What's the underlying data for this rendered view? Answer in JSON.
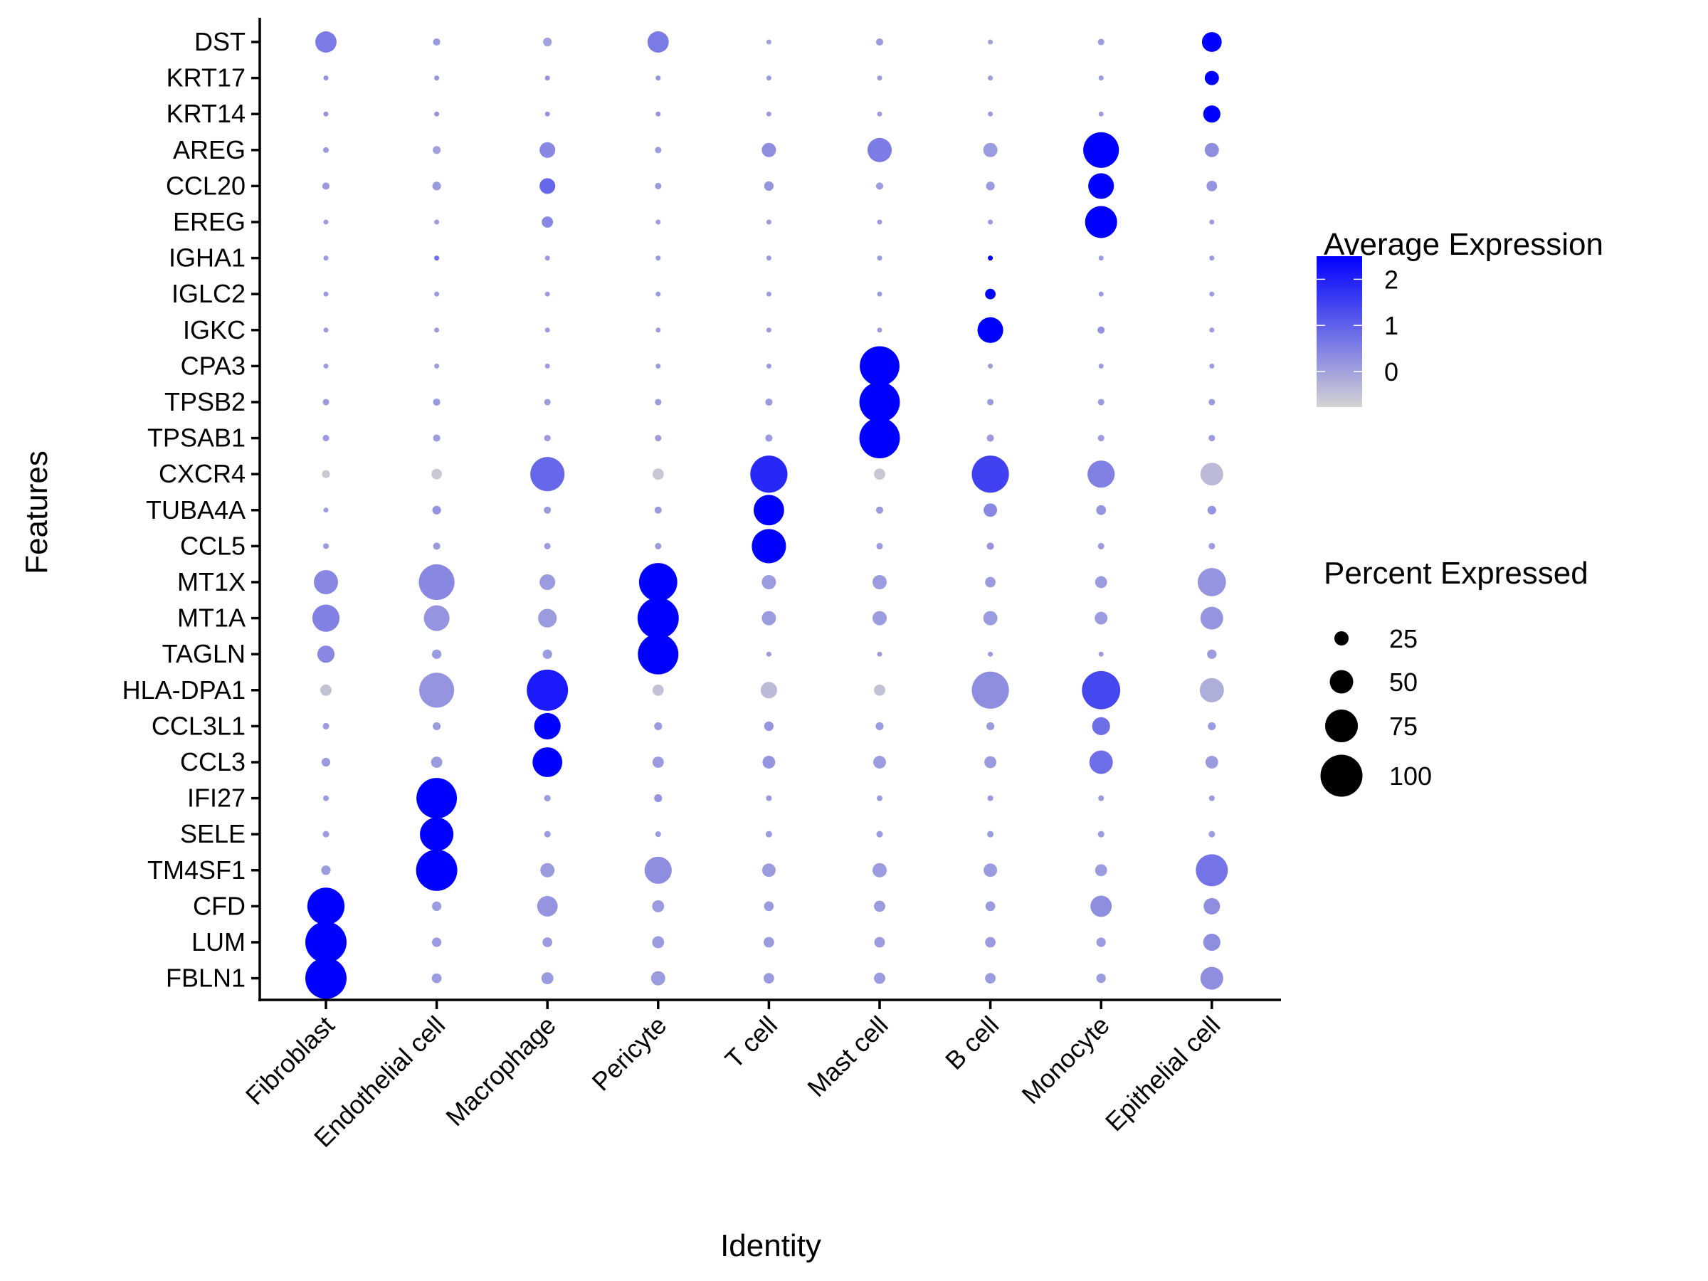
{
  "chart_data": {
    "type": "scatter",
    "subtype": "dotplot",
    "title": "",
    "xlabel": "Identity",
    "ylabel": "Features",
    "x_categories": [
      "Fibroblast",
      "Endothelial cell",
      "Macrophage",
      "Pericyte",
      "T cell",
      "Mast cell",
      "B cell",
      "Monocyte",
      "Epithelial cell"
    ],
    "y_categories": [
      "DST",
      "KRT17",
      "KRT14",
      "AREG",
      "CCL20",
      "EREG",
      "IGHA1",
      "IGLC2",
      "IGKC",
      "CPA3",
      "TPSB2",
      "TPSAB1",
      "CXCR4",
      "TUBA4A",
      "CCL5",
      "MT1X",
      "MT1A",
      "TAGLN",
      "HLA-DPA1",
      "CCL3L1",
      "CCL3",
      "IFI27",
      "SELE",
      "TM4SF1",
      "CFD",
      "LUM",
      "FBLN1"
    ],
    "percent_expressed": [
      [
        44,
        6,
        10,
        44,
        0,
        6,
        0,
        4,
        40
      ],
      [
        0,
        0,
        0,
        0,
        0,
        0,
        0,
        0,
        25
      ],
      [
        0,
        0,
        0,
        0,
        0,
        0,
        0,
        0,
        33
      ],
      [
        2,
        8,
        29,
        4,
        25,
        52,
        25,
        83,
        25
      ],
      [
        6,
        10,
        29,
        4,
        12,
        6,
        10,
        56,
        15
      ],
      [
        0,
        0,
        17,
        0,
        0,
        0,
        0,
        73,
        0
      ],
      [
        0,
        0,
        0,
        0,
        0,
        0,
        0,
        0,
        0
      ],
      [
        0,
        0,
        0,
        0,
        0,
        0,
        15,
        0,
        0
      ],
      [
        0,
        0,
        0,
        0,
        0,
        0,
        56,
        6,
        0
      ],
      [
        0,
        0,
        0,
        0,
        0,
        94,
        0,
        0,
        0
      ],
      [
        4,
        6,
        4,
        4,
        6,
        96,
        4,
        4,
        4
      ],
      [
        4,
        6,
        4,
        4,
        6,
        96,
        6,
        4,
        4
      ],
      [
        8,
        15,
        79,
        17,
        87,
        17,
        87,
        60,
        48
      ],
      [
        0,
        10,
        6,
        6,
        69,
        6,
        23,
        13,
        10
      ],
      [
        2,
        6,
        4,
        4,
        79,
        4,
        6,
        4,
        4
      ],
      [
        52,
        83,
        29,
        90,
        25,
        25,
        15,
        19,
        63
      ],
      [
        60,
        56,
        37,
        98,
        25,
        25,
        25,
        21,
        48
      ],
      [
        33,
        12,
        12,
        96,
        0,
        0,
        0,
        0,
        12
      ],
      [
        17,
        81,
        98,
        17,
        31,
        17,
        87,
        90,
        52
      ],
      [
        4,
        8,
        58,
        8,
        12,
        8,
        8,
        35,
        8
      ],
      [
        10,
        17,
        67,
        17,
        21,
        21,
        19,
        50,
        21
      ],
      [
        2,
        96,
        4,
        8,
        2,
        2,
        2,
        2,
        2
      ],
      [
        4,
        77,
        4,
        2,
        4,
        4,
        4,
        4,
        4
      ],
      [
        12,
        98,
        25,
        60,
        23,
        25,
        23,
        19,
        73
      ],
      [
        87,
        12,
        42,
        19,
        13,
        17,
        13,
        44,
        31
      ],
      [
        98,
        12,
        13,
        19,
        15,
        15,
        15,
        12,
        33
      ],
      [
        98,
        13,
        19,
        25,
        15,
        17,
        15,
        12,
        48
      ]
    ],
    "average_expression": [
      [
        0.6,
        0.1,
        0.0,
        0.6,
        0.0,
        0.1,
        0.0,
        0.1,
        2.5
      ],
      [
        0.2,
        0.2,
        0.2,
        0.2,
        0.1,
        0.1,
        0.1,
        0.1,
        2.5
      ],
      [
        0.2,
        0.2,
        0.2,
        0.2,
        0.1,
        0.1,
        0.1,
        0.1,
        2.5
      ],
      [
        0.1,
        0.0,
        0.4,
        0.1,
        0.3,
        0.6,
        0.1,
        2.5,
        0.3
      ],
      [
        0.1,
        0.1,
        0.9,
        0.1,
        0.2,
        0.1,
        0.1,
        2.5,
        0.2
      ],
      [
        0.1,
        0.1,
        0.4,
        0.1,
        0.1,
        0.1,
        0.1,
        2.5,
        0.1
      ],
      [
        0.1,
        0.8,
        0.1,
        0.1,
        0.1,
        0.1,
        2.5,
        0.1,
        0.1
      ],
      [
        0.1,
        0.1,
        0.1,
        0.1,
        0.1,
        0.1,
        2.5,
        0.1,
        0.1
      ],
      [
        0.1,
        0.1,
        0.1,
        0.1,
        0.1,
        0.1,
        2.5,
        0.2,
        0.1
      ],
      [
        0.1,
        0.1,
        0.1,
        0.1,
        0.1,
        2.5,
        0.1,
        0.1,
        0.1
      ],
      [
        0.1,
        0.1,
        0.1,
        0.1,
        0.1,
        2.5,
        0.1,
        0.1,
        0.1
      ],
      [
        0.1,
        0.1,
        0.1,
        0.1,
        0.1,
        2.5,
        0.1,
        0.1,
        0.1
      ],
      [
        -0.6,
        -0.6,
        0.9,
        -0.6,
        1.9,
        -0.6,
        1.5,
        0.5,
        -0.4
      ],
      [
        0.1,
        0.2,
        0.1,
        0.1,
        2.5,
        0.1,
        0.4,
        0.2,
        0.2
      ],
      [
        0.1,
        0.1,
        0.1,
        0.1,
        2.5,
        0.1,
        0.2,
        0.1,
        0.1
      ],
      [
        0.4,
        0.4,
        0.1,
        2.5,
        0.1,
        0.1,
        0.1,
        0.1,
        0.2
      ],
      [
        0.5,
        0.2,
        0.1,
        2.5,
        0.1,
        0.1,
        0.1,
        0.1,
        0.2
      ],
      [
        0.4,
        0.1,
        0.1,
        2.5,
        0.1,
        0.1,
        0.1,
        0.1,
        0.1
      ],
      [
        -0.5,
        0.2,
        2.1,
        -0.5,
        -0.4,
        -0.5,
        0.3,
        1.4,
        -0.2
      ],
      [
        0.1,
        0.1,
        2.5,
        0.1,
        0.2,
        0.1,
        0.1,
        0.8,
        0.1
      ],
      [
        0.1,
        0.1,
        2.5,
        0.1,
        0.2,
        0.1,
        0.1,
        0.8,
        0.1
      ],
      [
        0.1,
        2.5,
        0.1,
        0.2,
        0.1,
        0.1,
        0.1,
        0.1,
        0.1
      ],
      [
        0.1,
        2.5,
        0.1,
        0.1,
        0.1,
        0.1,
        0.1,
        0.1,
        0.1
      ],
      [
        0.1,
        2.5,
        0.1,
        0.3,
        0.1,
        0.1,
        0.1,
        0.1,
        0.7
      ],
      [
        2.5,
        0.1,
        0.2,
        0.1,
        0.1,
        0.1,
        0.1,
        0.3,
        0.3
      ],
      [
        2.5,
        0.1,
        0.1,
        0.1,
        0.1,
        0.1,
        0.1,
        0.1,
        0.3
      ],
      [
        2.5,
        0.1,
        0.1,
        0.1,
        0.1,
        0.1,
        0.1,
        0.1,
        0.3
      ]
    ],
    "color_scale": {
      "title": "Average Expression",
      "low_color": "#D3D3D3",
      "high_color": "#0000FF",
      "range": [
        -0.77,
        2.5
      ],
      "ticks": [
        2,
        1,
        0
      ]
    },
    "size_scale": {
      "title": "Percent Expressed",
      "breaks": [
        25,
        50,
        75,
        100
      ],
      "labels": [
        "25",
        "50",
        "75",
        "100"
      ],
      "legend_color": "#000000"
    },
    "legend_position": "right",
    "grid": false
  }
}
